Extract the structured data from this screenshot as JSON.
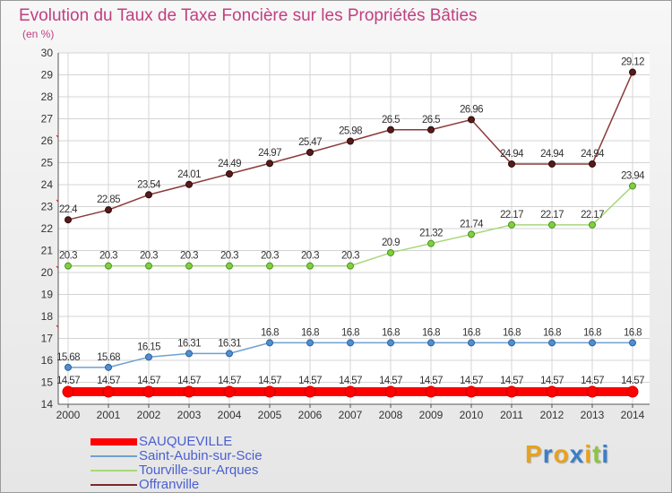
{
  "header": {
    "title": "Evolution du Taux de Taxe Foncière sur les Propriétés Bâties",
    "unit": "(en %)"
  },
  "chart_data": {
    "type": "line",
    "title": "Evolution du Taux de Taxe Foncière sur les Propriétés Bâties",
    "ylabel": "(en %)",
    "xlabel": "",
    "categories": [
      "2000",
      "2001",
      "2002",
      "2003",
      "2004",
      "2005",
      "2006",
      "2007",
      "2008",
      "2009",
      "2010",
      "2011",
      "2012",
      "2013",
      "2014"
    ],
    "ylim": [
      14,
      30
    ],
    "yticks": [
      "14",
      "15",
      "16",
      "17",
      "18",
      "19",
      "20",
      "21",
      "22",
      "23",
      "24",
      "25",
      "26",
      "27",
      "28",
      "29",
      "30"
    ],
    "grid": true,
    "series": [
      {
        "name": "SAUQUEVILLE",
        "color": "#ff0000",
        "values": [
          14.57,
          14.57,
          14.57,
          14.57,
          14.57,
          14.57,
          14.57,
          14.57,
          14.57,
          14.57,
          14.57,
          14.57,
          14.57,
          14.57,
          14.57
        ],
        "labels": [
          "14.57",
          "14.57",
          "14.57",
          "14.57",
          "14.57",
          "14.57",
          "14.57",
          "14.57",
          "14.57",
          "14.57",
          "14.57",
          "14.57",
          "14.57",
          "14.57",
          "14.57"
        ]
      },
      {
        "name": "Saint-Aubin-sur-Scie",
        "color": "#6fa1d2",
        "values": [
          15.68,
          15.68,
          16.15,
          16.31,
          16.31,
          16.8,
          16.8,
          16.8,
          16.8,
          16.8,
          16.8,
          16.8,
          16.8,
          16.8,
          16.8
        ],
        "labels": [
          "15.68",
          "15.68",
          "16.15",
          "16.31",
          "16.31",
          "16.8",
          "16.8",
          "16.8",
          "16.8",
          "16.8",
          "16.8",
          "16.8",
          "16.8",
          "16.8",
          "16.8"
        ]
      },
      {
        "name": "Tourville-sur-Arques",
        "color": "#a8d87a",
        "values": [
          20.3,
          20.3,
          20.3,
          20.3,
          20.3,
          20.3,
          20.3,
          20.3,
          20.9,
          21.32,
          21.74,
          22.17,
          22.17,
          22.17,
          23.94
        ],
        "labels": [
          "20.3",
          "20.3",
          "20.3",
          "20.3",
          "20.3",
          "20.3",
          "20.3",
          "20.3",
          "20.9",
          "21.32",
          "21.74",
          "22.17",
          "22.17",
          "22.17",
          "23.94"
        ]
      },
      {
        "name": "Offranville",
        "color": "#7a2a2a",
        "values": [
          22.4,
          22.85,
          23.54,
          24.01,
          24.49,
          24.97,
          25.47,
          25.98,
          26.5,
          26.5,
          26.96,
          24.94,
          24.94,
          24.94,
          29.12
        ],
        "labels": [
          "22.4",
          "22.85",
          "23.54",
          "24.01",
          "24.49",
          "24.97",
          "25.47",
          "25.98",
          "26.5",
          "26.5",
          "26.96",
          "24.94",
          "24.94",
          "24.94",
          "29.12"
        ]
      }
    ]
  },
  "legend": {
    "items": [
      "SAUQUEVILLE",
      "Saint-Aubin-sur-Scie",
      "Tourville-sur-Arques",
      "Offranville"
    ],
    "colors": [
      "#ff0000",
      "#6fa1d2",
      "#a8d87a",
      "#7a2a2a"
    ]
  },
  "logo": {
    "letters": [
      "P",
      "r",
      "o",
      "x",
      "i",
      "t",
      "i"
    ],
    "colors": [
      "#e8a21a",
      "#3a7ec8",
      "#e8a21a",
      "#3a7ec8",
      "#e8a21a",
      "#8cc63f",
      "#3a7ec8"
    ]
  }
}
